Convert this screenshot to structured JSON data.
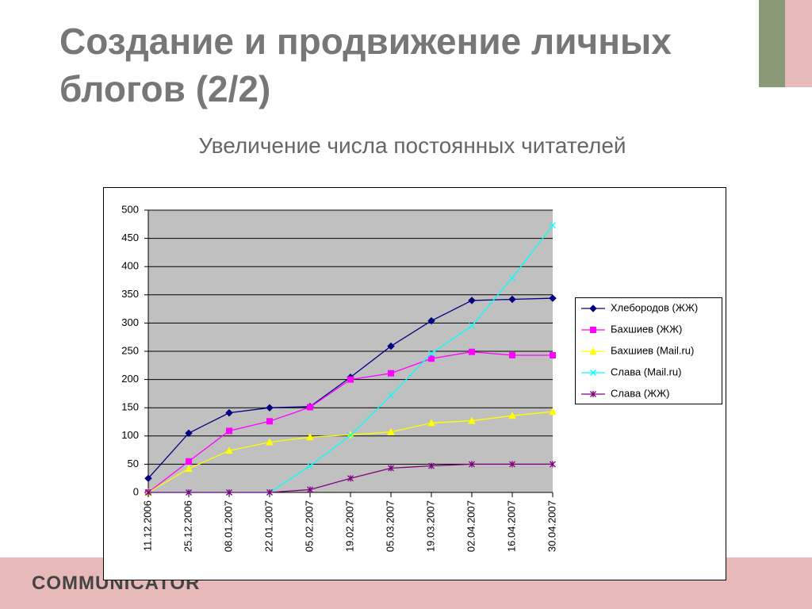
{
  "title": "Создание и продвижение личных блогов (2/2)",
  "subtitle": "Увеличение числа постоянных читателей",
  "logo": "COMMUNICATOR",
  "chart_data": {
    "type": "line",
    "categories": [
      "11.12.2006",
      "25.12.2006",
      "08.01.2007",
      "22.01.2007",
      "05.02.2007",
      "19.02.2007",
      "05.03.2007",
      "19.03.2007",
      "02.04.2007",
      "16.04.2007",
      "30.04.2007"
    ],
    "series": [
      {
        "name": "Хлебородов (ЖЖ)",
        "color": "#000080",
        "marker": "diamond",
        "values": [
          25,
          105,
          141,
          150,
          152,
          204,
          259,
          304,
          340,
          342,
          344
        ]
      },
      {
        "name": "Бахшиев (ЖЖ)",
        "color": "#ff00ff",
        "marker": "square",
        "values": [
          0,
          55,
          109,
          126,
          151,
          200,
          211,
          237,
          249,
          243,
          243
        ]
      },
      {
        "name": "Бахшиев (Mail.ru)",
        "color": "#ffff00",
        "marker": "triangle",
        "values": [
          0,
          42,
          74,
          89,
          98,
          102,
          107,
          123,
          127,
          136,
          143
        ]
      },
      {
        "name": "Слава (Mail.ru)",
        "color": "#00ffff",
        "marker": "x",
        "values": [
          0,
          0,
          0,
          0,
          47,
          101,
          172,
          246,
          295,
          380,
          473
        ]
      },
      {
        "name": "Слава (ЖЖ)",
        "color": "#800080",
        "marker": "star",
        "values": [
          0,
          0,
          0,
          0,
          5,
          25,
          43,
          47,
          50,
          50,
          50
        ]
      }
    ],
    "ylim": [
      0,
      500
    ],
    "yticks": [
      0,
      50,
      100,
      150,
      200,
      250,
      300,
      350,
      400,
      450,
      500
    ],
    "grid": true,
    "legend": "right"
  }
}
